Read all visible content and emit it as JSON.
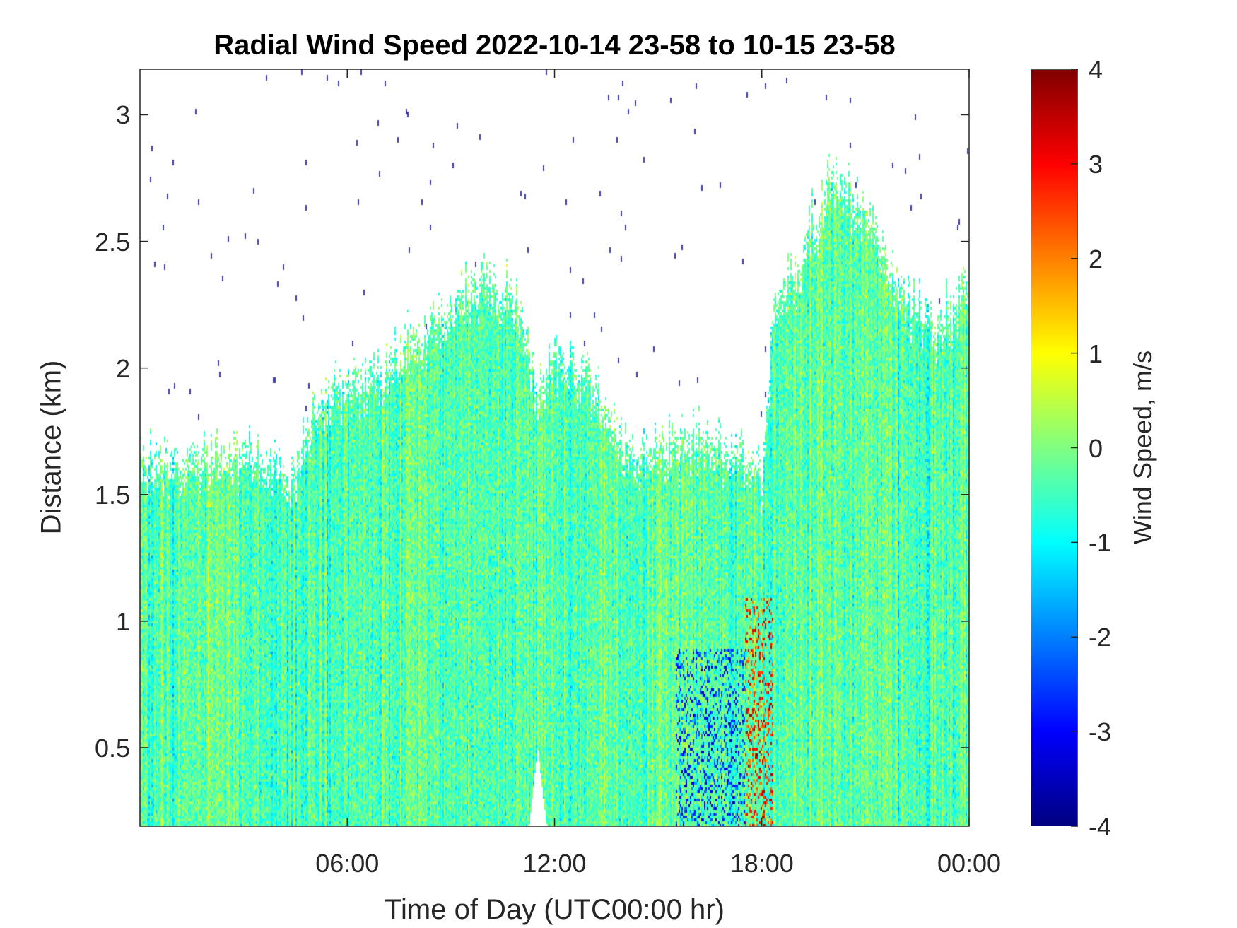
{
  "chart_data": {
    "type": "heatmap",
    "title": "Radial Wind Speed 2022-10-14 23-58 to 10-15 23-58",
    "xlabel": "Time of Day (UTC00:00 hr)",
    "ylabel": "Distance (km)",
    "colorbar_label": "Wind Speed, m/s",
    "colormap": "jet",
    "clim": [
      -4,
      4
    ],
    "xlim_hours": [
      0,
      24
    ],
    "ylim_km": [
      0.19,
      3.18
    ],
    "x_ticks": [
      {
        "value": 6,
        "label": "06:00"
      },
      {
        "value": 12,
        "label": "12:00"
      },
      {
        "value": 18,
        "label": "18:00"
      },
      {
        "value": 24,
        "label": "00:00"
      }
    ],
    "y_ticks": [
      {
        "value": 0.5,
        "label": "0.5"
      },
      {
        "value": 1,
        "label": "1"
      },
      {
        "value": 1.5,
        "label": "1.5"
      },
      {
        "value": 2,
        "label": "2"
      },
      {
        "value": 2.5,
        "label": "2.5"
      },
      {
        "value": 3,
        "label": "3"
      }
    ],
    "colorbar_ticks": [
      {
        "value": -4,
        "label": "-4"
      },
      {
        "value": -3,
        "label": "-3"
      },
      {
        "value": -2,
        "label": "-2"
      },
      {
        "value": -1,
        "label": "-1"
      },
      {
        "value": 0,
        "label": "0"
      },
      {
        "value": 1,
        "label": "1"
      },
      {
        "value": 2,
        "label": "2"
      },
      {
        "value": 3,
        "label": "3"
      },
      {
        "value": 4,
        "label": "4"
      }
    ],
    "echo_top_km": {
      "hours": [
        0,
        3,
        4.5,
        5,
        6,
        7,
        8,
        9,
        10,
        11,
        11.5,
        12,
        13,
        14,
        15,
        16,
        17,
        17.5,
        18,
        18.3,
        19,
        20,
        21,
        22,
        23,
        24
      ],
      "km": [
        1.66,
        1.71,
        1.62,
        1.87,
        2.0,
        2.02,
        2.15,
        2.27,
        2.4,
        2.27,
        1.9,
        2.09,
        2.0,
        1.71,
        1.73,
        1.77,
        1.7,
        1.71,
        1.6,
        2.27,
        2.43,
        2.81,
        2.65,
        2.34,
        2.21,
        2.34
      ]
    },
    "typical_value_ms": -0.3,
    "features": [
      {
        "hours": [
          11.2,
          11.8
        ],
        "km_max": 0.5,
        "value": null
      },
      {
        "hours": [
          15.5,
          17.5
        ],
        "km_max": 0.9,
        "value": -2.5
      },
      {
        "hours": [
          17.5,
          18.3
        ],
        "km_max": 1.1,
        "value": 2.8
      }
    ]
  }
}
